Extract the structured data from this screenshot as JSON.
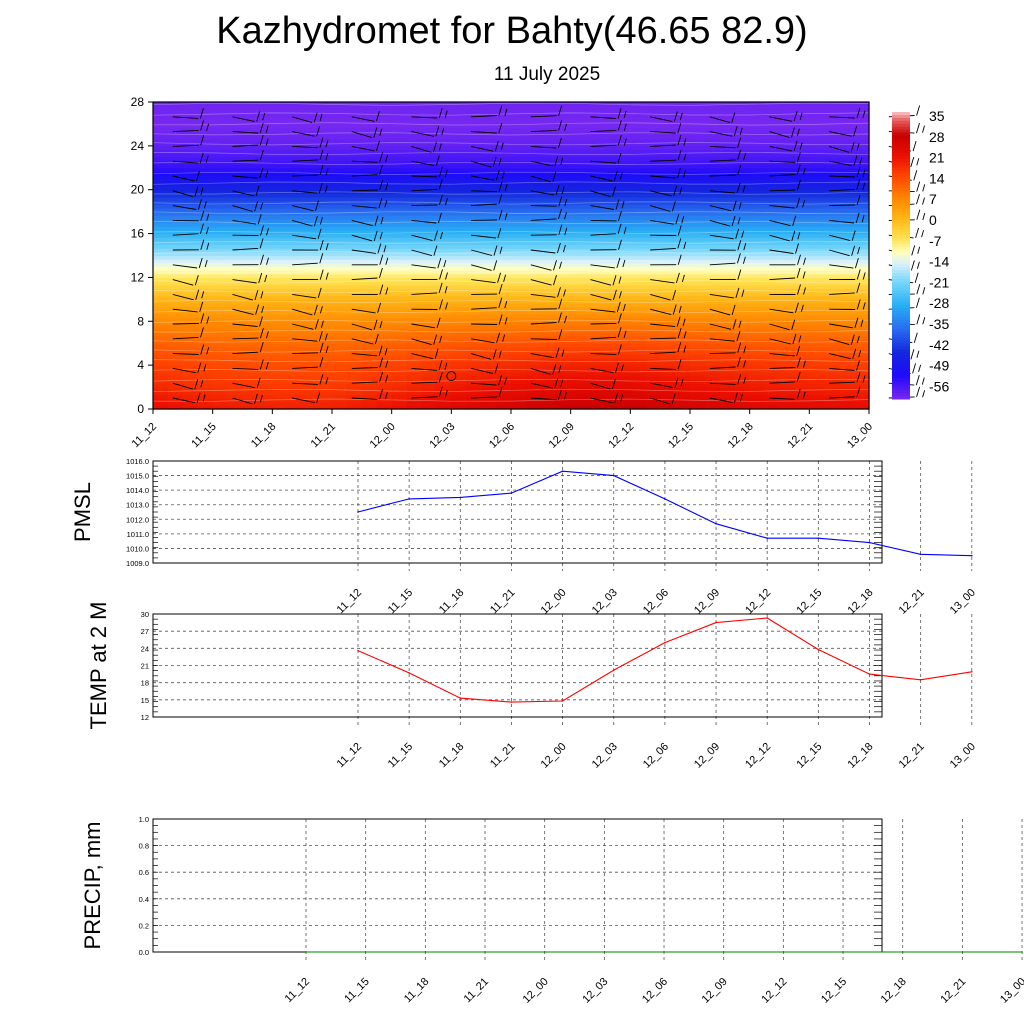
{
  "header": {
    "title": "Kazhydromet for Bahty(46.65 82.9)",
    "subtitle": "11 July 2025"
  },
  "chart_data": [
    {
      "type": "heatmap",
      "title": "",
      "x": [
        "11_12",
        "11_15",
        "11_18",
        "11_21",
        "12_00",
        "12_03",
        "12_06",
        "12_09",
        "12_12",
        "12_15",
        "12_18",
        "12_21",
        "13_00"
      ],
      "yticks": [
        "0",
        "4",
        "8",
        "12",
        "16",
        "20",
        "24",
        "28"
      ],
      "ylim": [
        0,
        28
      ],
      "colorbar_labels": [
        "35",
        "28",
        "21",
        "14",
        "7",
        "0",
        "-7",
        "-14",
        "-21",
        "-28",
        "-35",
        "-42",
        "-49",
        "-56"
      ],
      "colorbar_range": [
        -60,
        38
      ],
      "field_profile_by_level": [
        {
          "level": 0,
          "value": 24
        },
        {
          "level": 2,
          "value": 20
        },
        {
          "level": 4,
          "value": 17
        },
        {
          "level": 6,
          "value": 13
        },
        {
          "level": 8,
          "value": 8
        },
        {
          "level": 10,
          "value": 2
        },
        {
          "level": 12,
          "value": -6
        },
        {
          "level": 13,
          "value": -11
        },
        {
          "level": 14,
          "value": -17
        },
        {
          "level": 16,
          "value": -27
        },
        {
          "level": 18,
          "value": -36
        },
        {
          "level": 20,
          "value": -45
        },
        {
          "level": 22,
          "value": -54
        },
        {
          "level": 24,
          "value": -58
        },
        {
          "level": 26,
          "value": -60
        },
        {
          "level": 28,
          "value": -59
        }
      ],
      "time_warming": [
        0,
        -2,
        -3,
        -3,
        -1,
        2,
        4,
        6,
        6,
        4,
        2,
        1,
        0
      ],
      "wind_barbs": "present"
    },
    {
      "type": "line",
      "ylabel": "PMSL",
      "x": [
        "11_12",
        "11_15",
        "11_18",
        "11_21",
        "12_00",
        "12_03",
        "12_06",
        "12_09",
        "12_12",
        "12_15",
        "12_18",
        "12_21",
        "13_00"
      ],
      "yticks": [
        "1009.0",
        "1010.0",
        "1011.0",
        "1012.0",
        "1013.0",
        "1014.0",
        "1015.0",
        "1016.0"
      ],
      "ylim": [
        1009,
        1016
      ],
      "series": [
        {
          "color": "#0000ff",
          "values": [
            1012.5,
            1013.4,
            1013.5,
            1013.8,
            1015.3,
            1015.0,
            1013.4,
            1011.7,
            1010.7,
            1010.7,
            1010.4,
            1009.6,
            1009.5
          ]
        }
      ]
    },
    {
      "type": "line",
      "ylabel": "TEMP at 2 M",
      "x": [
        "11_12",
        "11_15",
        "11_18",
        "11_21",
        "12_00",
        "12_03",
        "12_06",
        "12_09",
        "12_12",
        "12_15",
        "12_18",
        "12_21",
        "13_00"
      ],
      "yticks": [
        "12",
        "15",
        "18",
        "21",
        "24",
        "27",
        "30"
      ],
      "ylim": [
        12,
        30
      ],
      "series": [
        {
          "color": "#ff0000",
          "values": [
            23.6,
            19.7,
            15.3,
            14.6,
            14.8,
            20.2,
            25.0,
            28.5,
            29.3,
            23.8,
            19.5,
            18.5,
            19.9
          ]
        }
      ]
    },
    {
      "type": "line",
      "ylabel": "PRECIP, mm",
      "x": [
        "11_12",
        "11_15",
        "11_18",
        "11_21",
        "12_00",
        "12_03",
        "12_06",
        "12_09",
        "12_12",
        "12_15",
        "12_18",
        "12_21",
        "13_00"
      ],
      "yticks": [
        "0.0",
        "0.2",
        "0.4",
        "0.6",
        "0.8",
        "1.0"
      ],
      "ylim": [
        0,
        1
      ],
      "series": [
        {
          "color": "#008000",
          "values": [
            0,
            0,
            0,
            0,
            0,
            0,
            0,
            0,
            0,
            0,
            0,
            0,
            0
          ]
        }
      ]
    }
  ]
}
